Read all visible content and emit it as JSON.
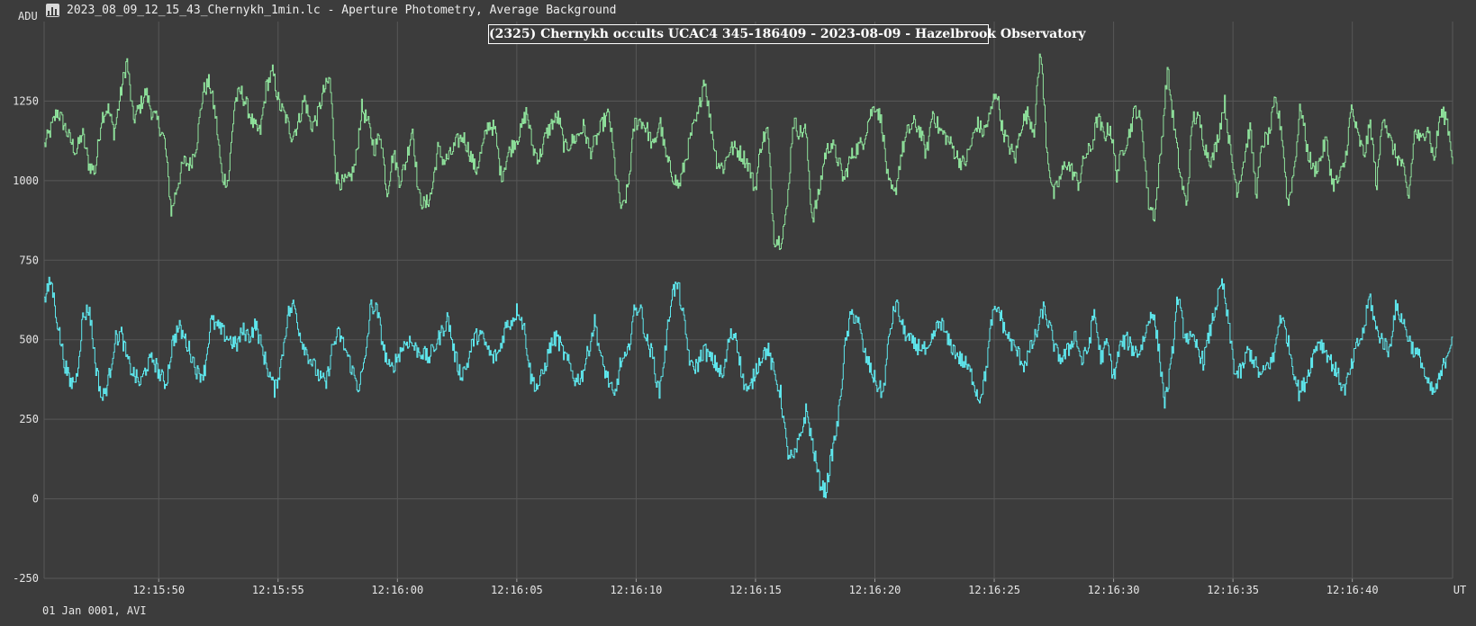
{
  "window": {
    "title": "2023_08_09_12_15_43_Chernykh_1min.lc - Aperture Photometry, Average Background",
    "icon": "chart-window-icon"
  },
  "footer": {
    "note": "01 Jan 0001, AVI"
  },
  "colors": {
    "background": "#3c3c3c",
    "grid": "#575757",
    "target_series": "#5ee8ee",
    "comparison_series": "#8fe39c",
    "text": "#e6e6e6"
  },
  "chart_data": {
    "type": "line",
    "title": "(2325) Chernykh occults UCAC4 345-186409 - 2023-08-09 - Hazelbrook Observatory",
    "ylabel": "ADU",
    "xlabel": "UT",
    "ylim": [
      -250,
      1500
    ],
    "xlim": [
      "12:15:45.2",
      "12:16:44.2"
    ],
    "grid": true,
    "y_ticks": [
      -250,
      0,
      250,
      500,
      750,
      1000,
      1250
    ],
    "x_tick_labels": [
      "12:15:50",
      "12:15:55",
      "12:16:00",
      "12:16:05",
      "12:16:10",
      "12:16:15",
      "12:16:20",
      "12:16:25",
      "12:16:30",
      "12:16:35",
      "12:16:40"
    ],
    "series": [
      {
        "color": "#8fe39c",
        "x_start": "12:15:45.2",
        "x_end": "12:16:44.2",
        "values": [
          1110,
          1160,
          1220,
          1180,
          1130,
          1090,
          1150,
          1050,
          1030,
          1200,
          1230,
          1150,
          1270,
          1380,
          1190,
          1230,
          1280,
          1210,
          1180,
          1120,
          900,
          990,
          1060,
          1050,
          1120,
          1280,
          1310,
          1200,
          1010,
          1000,
          1250,
          1280,
          1230,
          1170,
          1150,
          1300,
          1340,
          1240,
          1200,
          1140,
          1180,
          1260,
          1170,
          1200,
          1280,
          1320,
          1010,
          990,
          1000,
          1050,
          1230,
          1180,
          1100,
          1150,
          960,
          1090,
          1000,
          1060,
          1170,
          950,
          920,
          960,
          1100,
          1060,
          1080,
          1120,
          1140,
          1090,
          1030,
          1100,
          1180,
          1160,
          1010,
          1080,
          1120,
          1150,
          1220,
          1100,
          1070,
          1140,
          1180,
          1200,
          1100,
          1120,
          1140,
          1170,
          1090,
          1130,
          1180,
          1210,
          1030,
          900,
          980,
          1180,
          1190,
          1160,
          1100,
          1190,
          1070,
          1020,
          980,
          1060,
          1150,
          1200,
          1330,
          1180,
          1060,
          1040,
          1100,
          1100,
          1080,
          1050,
          970,
          1120,
          1160,
          820,
          810,
          900,
          1190,
          1150,
          1160,
          880,
          950,
          1080,
          1120,
          1070,
          1000,
          1070,
          1100,
          1120,
          1200,
          1240,
          1180,
          990,
          950,
          1080,
          1150,
          1180,
          1160,
          1080,
          1220,
          1160,
          1140,
          1110,
          1070,
          1050,
          1110,
          1180,
          1150,
          1200,
          1290,
          1160,
          1110,
          1070,
          1180,
          1210,
          1160,
          1420,
          1100,
          950,
          1000,
          1060,
          1030,
          990,
          1080,
          1100,
          1200,
          1140,
          1170,
          1020,
          1100,
          1150,
          1230,
          1170,
          930,
          890,
          1100,
          1350,
          1180,
          1020,
          920,
          1200,
          1190,
          1100,
          1060,
          1140,
          1250,
          1080,
          970,
          1060,
          1170,
          960,
          1120,
          1140,
          1250,
          1160,
          920,
          1040,
          1240,
          1100,
          1030,
          1060,
          1130,
          990,
          1000,
          1060,
          1230,
          1140,
          1080,
          1180,
          980,
          1220,
          1130,
          1080,
          1050,
          940,
          1160,
          1120,
          1180,
          1060,
          1210,
          1200,
          1070
        ]
      },
      {
        "color": "#5ee8ee",
        "x_start": "12:15:45.2",
        "x_end": "12:16:44.2",
        "values": [
          620,
          690,
          560,
          440,
          360,
          380,
          570,
          600,
          420,
          310,
          370,
          500,
          520,
          430,
          390,
          360,
          420,
          440,
          390,
          360,
          490,
          540,
          500,
          450,
          390,
          400,
          560,
          540,
          520,
          500,
          480,
          530,
          510,
          550,
          470,
          400,
          340,
          430,
          580,
          610,
          510,
          460,
          420,
          380,
          360,
          480,
          520,
          470,
          410,
          350,
          420,
          610,
          590,
          470,
          400,
          440,
          480,
          500,
          470,
          460,
          440,
          480,
          520,
          570,
          460,
          390,
          420,
          500,
          520,
          480,
          440,
          460,
          540,
          560,
          600,
          530,
          380,
          350,
          400,
          480,
          510,
          460,
          420,
          370,
          390,
          470,
          560,
          430,
          380,
          310,
          430,
          440,
          580,
          610,
          500,
          450,
          330,
          470,
          650,
          670,
          540,
          410,
          420,
          470,
          440,
          420,
          380,
          510,
          520,
          380,
          330,
          400,
          450,
          470,
          390,
          330,
          150,
          120,
          190,
          280,
          170,
          60,
          20,
          140,
          250,
          470,
          580,
          570,
          460,
          410,
          360,
          330,
          520,
          620,
          540,
          500,
          480,
          480,
          450,
          520,
          560,
          500,
          470,
          440,
          420,
          380,
          310,
          390,
          570,
          600,
          530,
          490,
          460,
          420,
          470,
          520,
          600,
          540,
          460,
          440,
          470,
          520,
          430,
          470,
          590,
          440,
          490,
          380,
          480,
          500,
          470,
          460,
          520,
          600,
          480,
          300,
          420,
          640,
          520,
          500,
          480,
          430,
          520,
          610,
          680,
          540,
          390,
          400,
          470,
          430,
          380,
          420,
          440,
          580,
          520,
          420,
          330,
          370,
          440,
          500,
          470,
          430,
          390,
          340,
          400,
          480,
          520,
          640,
          530,
          500,
          460,
          600,
          570,
          510,
          460,
          440,
          360,
          330,
          380,
          450,
          520
        ]
      }
    ]
  }
}
